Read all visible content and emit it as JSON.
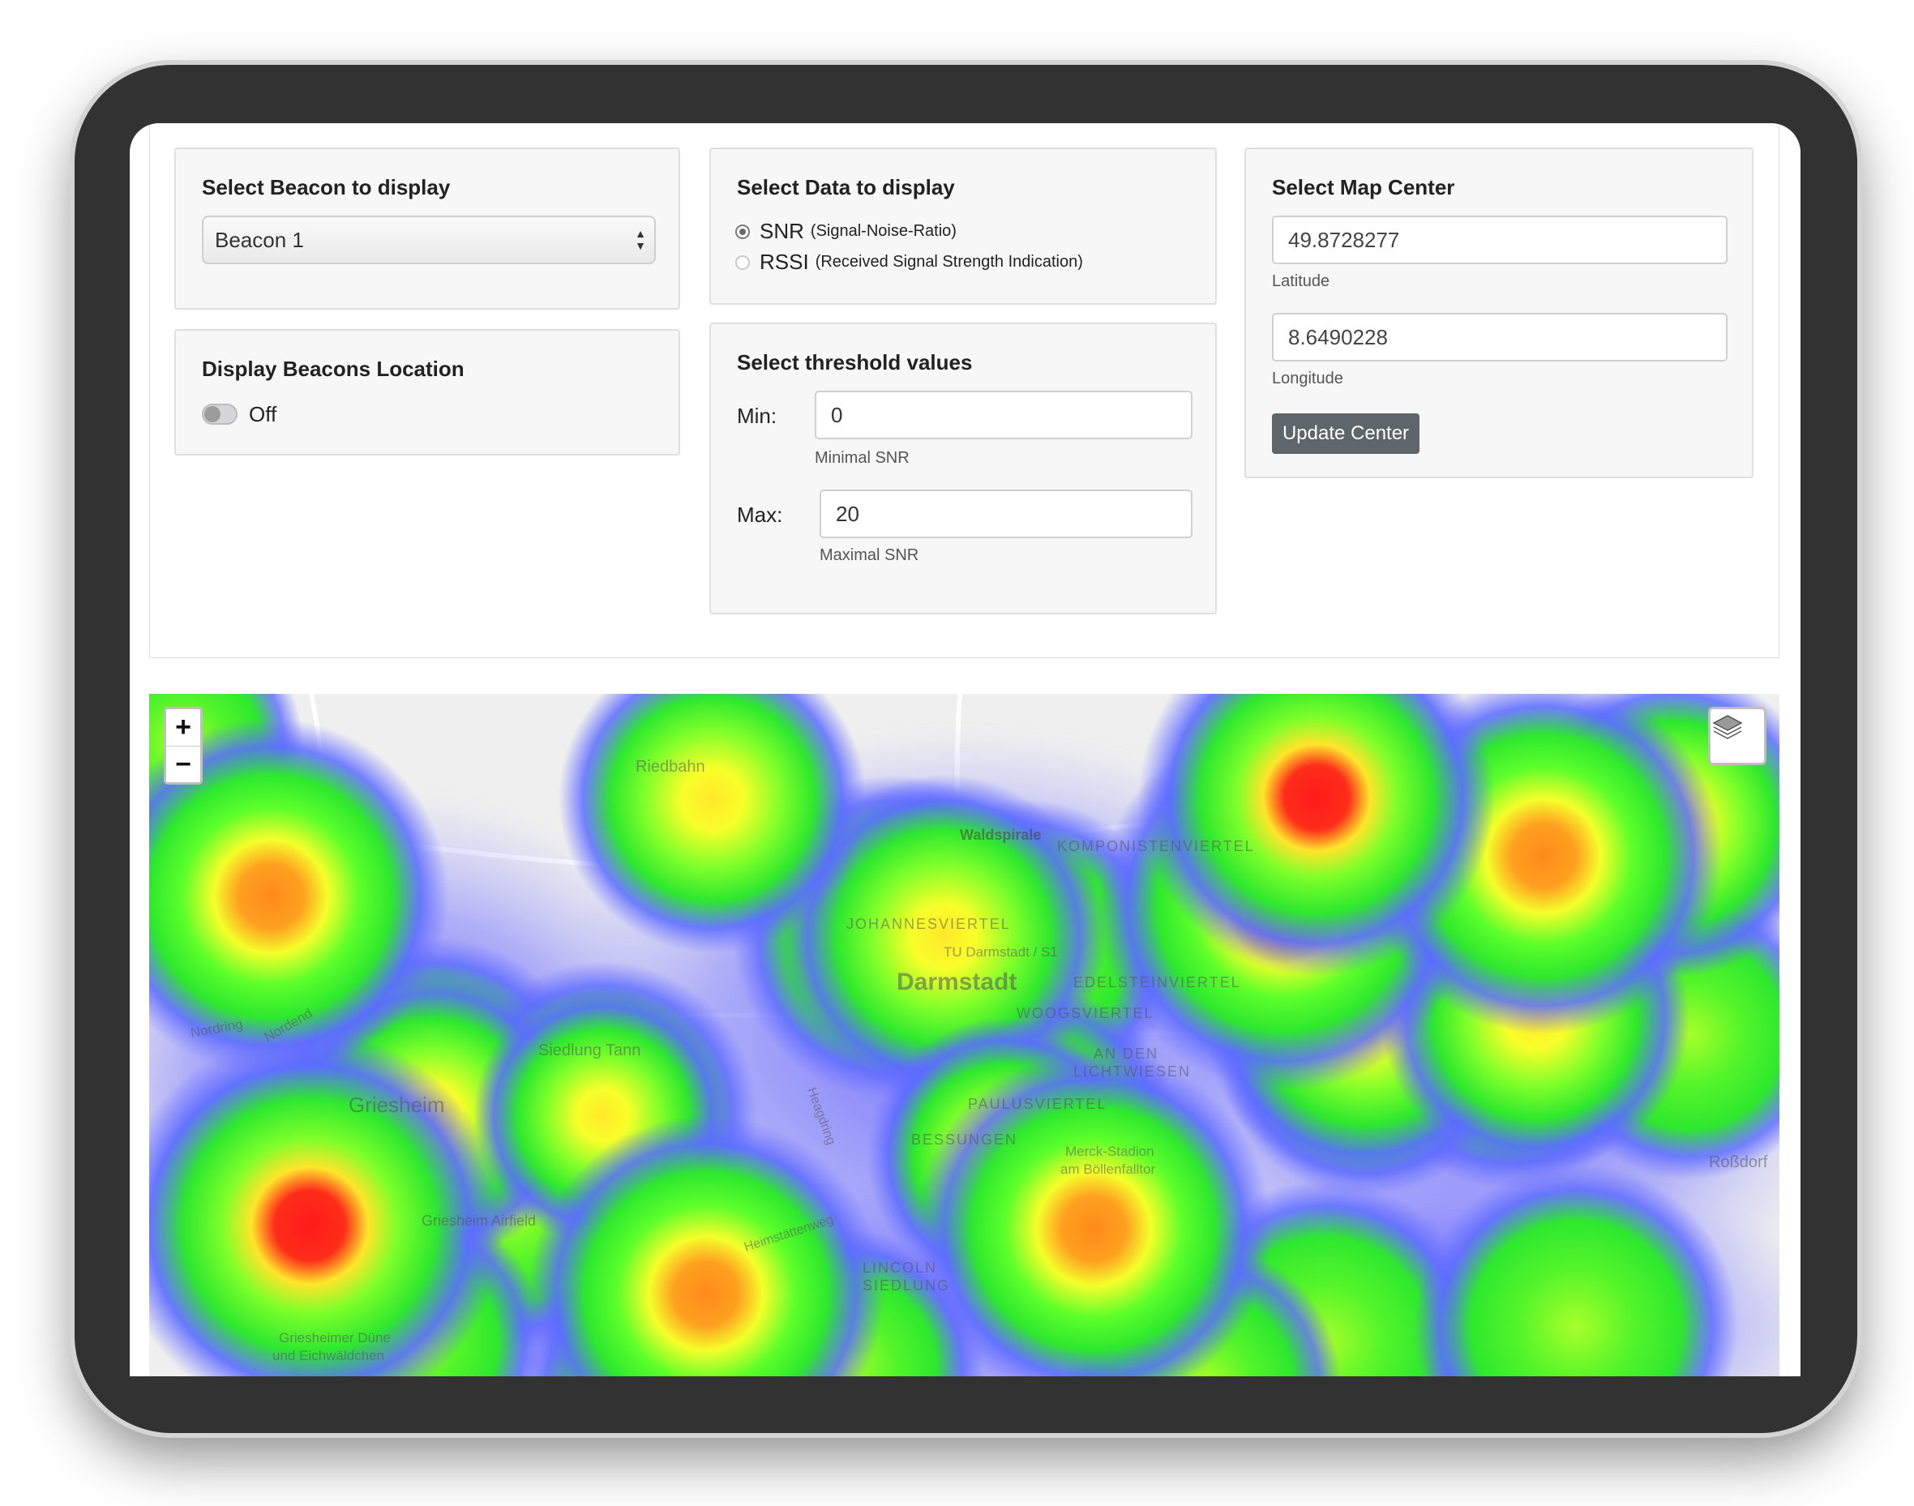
{
  "beacon_panel": {
    "title": "Select Beacon to display",
    "selected": "Beacon 1"
  },
  "location_panel": {
    "title": "Display Beacons Location",
    "toggle_state": "Off"
  },
  "data_panel": {
    "title": "Select Data to display",
    "options": [
      {
        "label": "SNR",
        "detail": "(Signal-Noise-Ratio)",
        "checked": true
      },
      {
        "label": "RSSI",
        "detail": "(Received Signal Strength Indication)",
        "checked": false
      }
    ]
  },
  "threshold_panel": {
    "title": "Select threshold values",
    "min_label": "Min:",
    "min_value": "0",
    "min_hint": "Minimal SNR",
    "max_label": "Max:",
    "max_value": "20",
    "max_hint": "Maximal SNR"
  },
  "center_panel": {
    "title": "Select Map Center",
    "latitude": "49.8728277",
    "latitude_label": "Latitude",
    "longitude": "8.6490228",
    "longitude_label": "Longitude",
    "button_label": "Update Center"
  },
  "map": {
    "zoom_in": "+",
    "zoom_out": "−",
    "layers_icon": "layers-icon",
    "place_labels": {
      "riedbahn": "Riedbahn",
      "waldspirale": "Waldspirale",
      "komponistenviertel": "KOMPONISTENVIERTEL",
      "johannesviertel": "JOHANNESVIERTEL",
      "tu_darmstadt": "TU Darmstadt / S1",
      "darmstadt": "Darmstadt",
      "edelsteinviertel": "EDELSTEINVIERTEL",
      "woogsviertel": "WOOGSVIERTEL",
      "an_den": "AN DEN",
      "lichtwiesen": "LICHTWIESEN",
      "nordring": "Nordring",
      "nordend": "Nordend",
      "griesheim": "Griesheim",
      "siedlung_tann": "Siedlung Tann",
      "paulusviertel": "PAULUSVIERTEL",
      "bessungen": "BESSUNGEN",
      "merck_stadion_1": "Merck-Stadion",
      "merck_stadion_2": "am Böllenfalltor",
      "rossdorf": "Roßdorf",
      "griesheim_airfield": "Griesheim Airfield",
      "lincoln_1": "LINCOLN",
      "lincoln_2": "SIEDLUNG",
      "griesheimer_duene_1": "Griesheimer Düne",
      "griesheimer_duene_2": "und Eichwäldchen",
      "heinrichstrasse": "Heimstättenweg",
      "heidelberger": "Heagdring"
    },
    "heat_colors": {
      "low": "#6b6bff",
      "mid": "#33ee33",
      "high": "#ffff22",
      "peak": "#ff2222"
    }
  }
}
